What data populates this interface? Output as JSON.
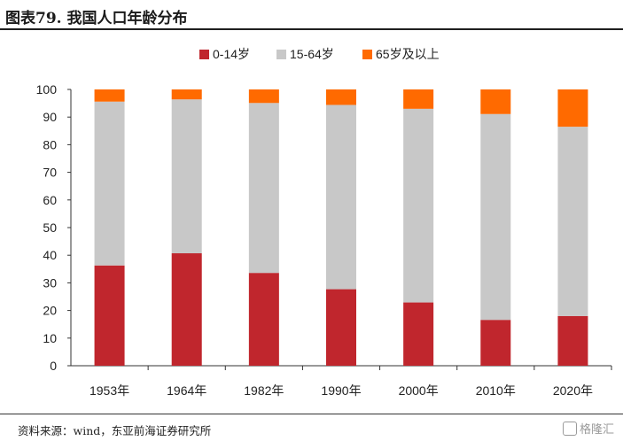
{
  "title": "图表79.  我国人口年龄分布",
  "source": "资料来源：wind，东亚前海证券研究所",
  "watermark": "格隆汇",
  "chart_data": {
    "type": "bar",
    "stacked": true,
    "categories": [
      "1953年",
      "1964年",
      "1982年",
      "1990年",
      "2000年",
      "2010年",
      "2020年"
    ],
    "series": [
      {
        "name": "0-14岁",
        "color": "#c0262d",
        "values": [
          36.3,
          40.7,
          33.6,
          27.7,
          22.9,
          16.6,
          18.0
        ]
      },
      {
        "name": "15-64岁",
        "color": "#c8c8c8",
        "values": [
          59.3,
          55.7,
          61.5,
          66.7,
          70.1,
          74.5,
          68.5
        ]
      },
      {
        "name": "65岁及以上",
        "color": "#ff6a00",
        "values": [
          4.4,
          3.6,
          4.9,
          5.6,
          7.0,
          8.9,
          13.5
        ]
      }
    ],
    "yticks": [
      0,
      10,
      20,
      30,
      40,
      50,
      60,
      70,
      80,
      90,
      100
    ],
    "ylim": [
      0,
      100
    ],
    "legend": "top-center"
  }
}
